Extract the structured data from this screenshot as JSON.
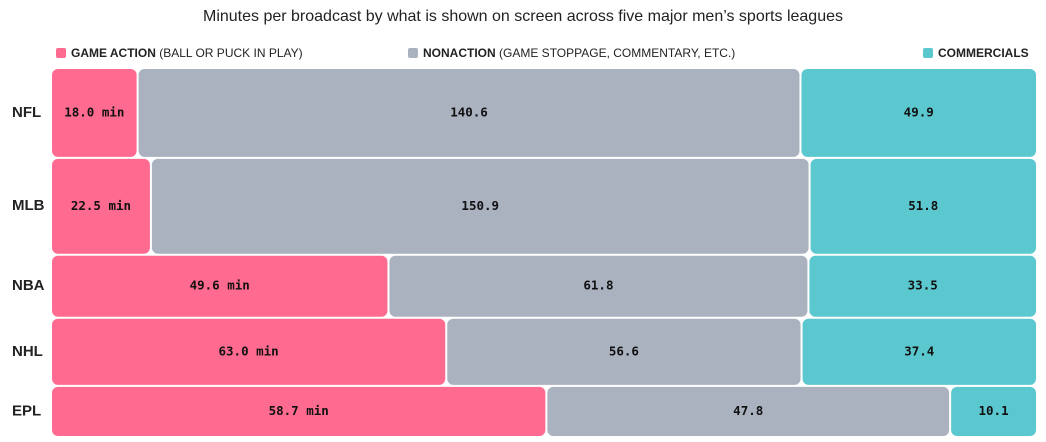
{
  "chart_data": {
    "type": "bar",
    "title": "Minutes per broadcast by what is shown on screen across five major men’s sports leagues",
    "categories": [
      "NFL",
      "MLB",
      "NBA",
      "NHL",
      "EPL"
    ],
    "series": [
      {
        "key": "game_action",
        "name": "GAME ACTION",
        "note": "(BALL OR PUCK IN PLAY)",
        "color": "#ff6b90",
        "values": [
          18.0,
          22.5,
          49.6,
          63.0,
          58.7
        ],
        "labels": [
          "18.0 min",
          "22.5 min",
          "49.6 min",
          "63.0 min",
          "58.7 min"
        ]
      },
      {
        "key": "nonaction",
        "name": "NONACTION",
        "note": "(GAME STOPPAGE, COMMENTARY, ETC.)",
        "color": "#aab1bf",
        "values": [
          140.6,
          150.9,
          61.8,
          56.6,
          47.8
        ],
        "labels": [
          "140.6",
          "150.9",
          "61.8",
          "56.6",
          "47.8"
        ]
      },
      {
        "key": "commercials",
        "name": "COMMERCIALS",
        "note": "",
        "color": "#5bc8d0",
        "values": [
          49.9,
          51.8,
          33.5,
          37.4,
          10.1
        ],
        "labels": [
          "49.9",
          "51.8",
          "33.5",
          "37.4",
          "10.1"
        ]
      }
    ],
    "stacked": true,
    "xlabel": "",
    "ylabel": "",
    "legend_position": "top",
    "grid": false
  }
}
